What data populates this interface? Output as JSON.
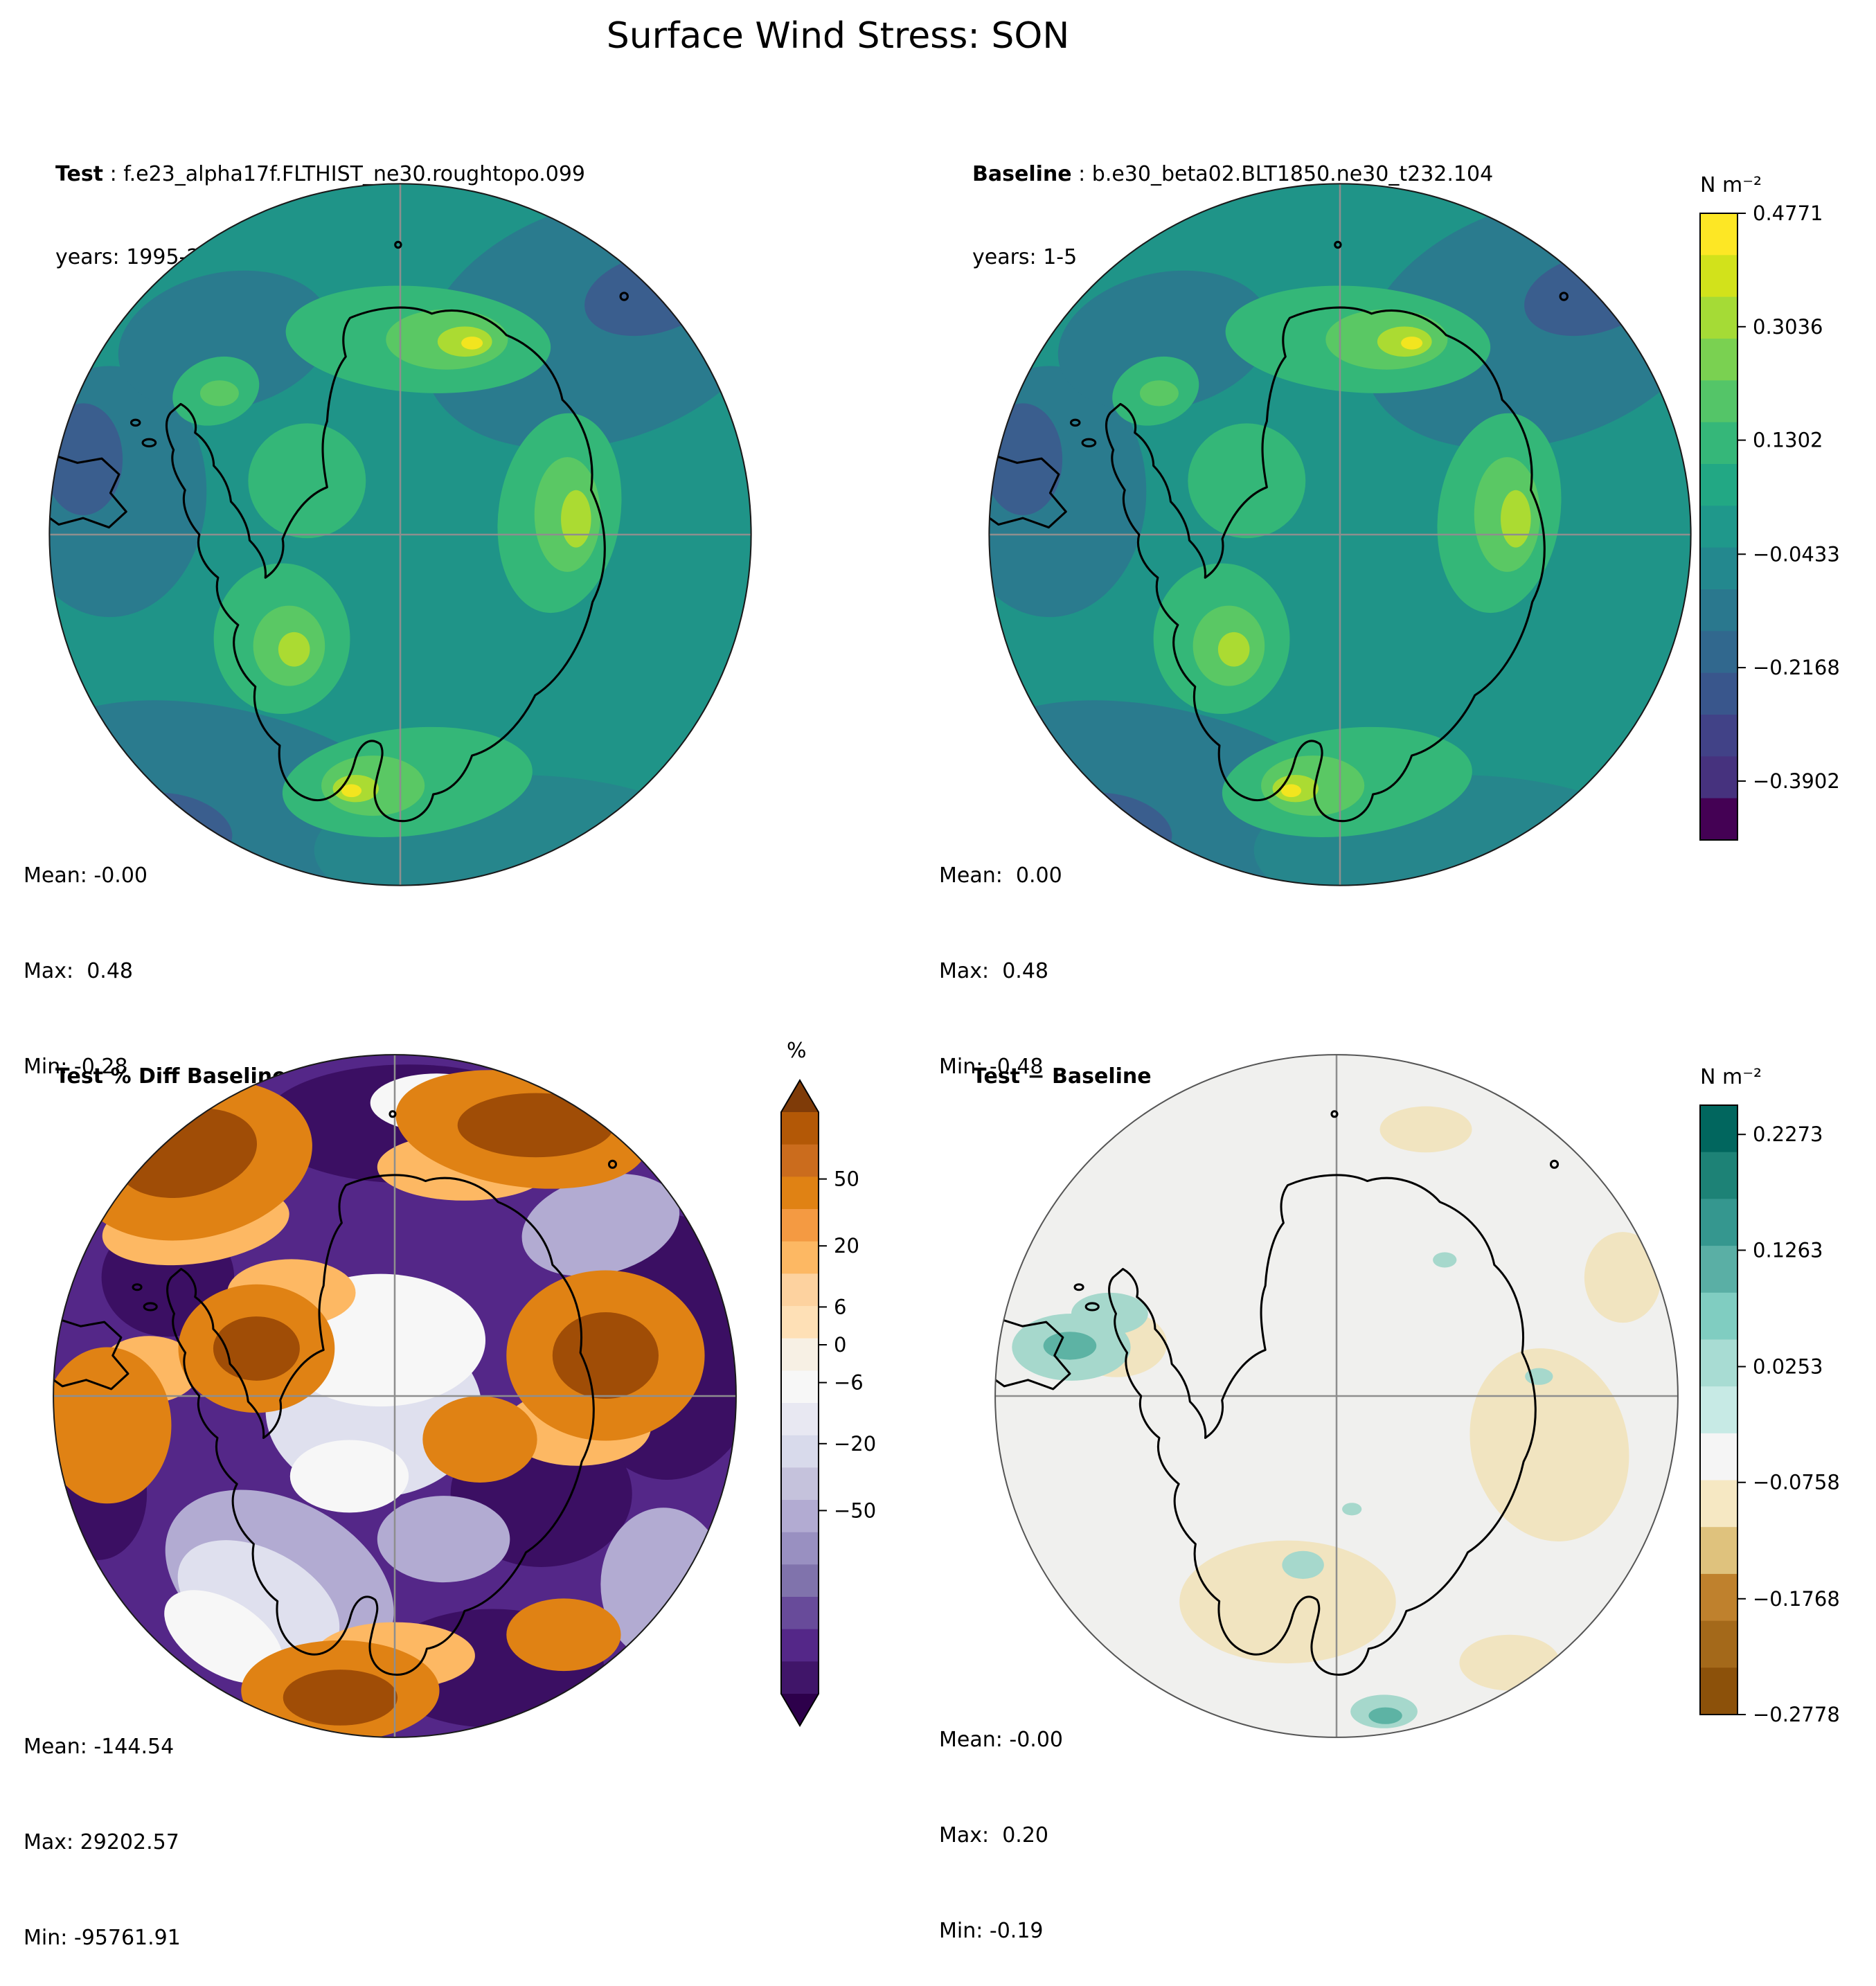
{
  "title": "Surface Wind Stress: SON",
  "panels": [
    {
      "label_bold": "Test",
      "label_rest": " : f.e23_alpha17f.FLTHIST_ne30.roughtopo.099",
      "years": "years: 1995-2006",
      "stats": [
        "Mean: -0.00",
        "Max:  0.48",
        "Min: -0.28"
      ]
    },
    {
      "label_bold": "Baseline",
      "label_rest": " : b.e30_beta02.BLT1850.ne30_t232.104",
      "years": "years: 1-5",
      "stats": [
        "Mean:  0.00",
        "Max:  0.48",
        "Min: -0.48"
      ]
    },
    {
      "label_bold": "Test % Diff Baseline",
      "label_rest": "",
      "years": "",
      "stats": [
        "Mean: -144.54",
        "Max: 29202.57",
        "Min: -95761.91"
      ]
    },
    {
      "label_bold": "Test − Baseline",
      "label_rest": "",
      "years": "",
      "stats": [
        "Mean: -0.00",
        "Max:  0.20",
        "Min: -0.19"
      ]
    }
  ],
  "colorbars": [
    {
      "units": "N m⁻²",
      "colormap": "viridis",
      "segments": [
        "#fde725",
        "#d2e21b",
        "#a5db36",
        "#7ad151",
        "#54c568",
        "#35b779",
        "#22a884",
        "#1f988b",
        "#23888e",
        "#2a788e",
        "#31688e",
        "#39568c",
        "#414287",
        "#46327e",
        "#440154"
      ],
      "ticks": [
        {
          "label": "0.4771",
          "pos": 0.0
        },
        {
          "label": "0.3036",
          "pos": 0.181
        },
        {
          "label": "0.1302",
          "pos": 0.362
        },
        {
          "label": "−0.0433",
          "pos": 0.544
        },
        {
          "label": "−0.2168",
          "pos": 0.725
        },
        {
          "label": "−0.3902",
          "pos": 0.906
        }
      ]
    },
    {
      "units": "%",
      "colormap": "PuOr_r",
      "extend": "both",
      "arrow_top": "#7f3b08",
      "arrow_bottom": "#2d004b",
      "segments": [
        "#b35806",
        "#cb6c1d",
        "#e08214",
        "#f49a42",
        "#fdb863",
        "#fdd29f",
        "#fee0b6",
        "#f7f0e4",
        "#f7f7f7",
        "#e8e8f2",
        "#d8daeb",
        "#c5c2dc",
        "#b2abd2",
        "#9990c1",
        "#8073ac",
        "#684b9a",
        "#542788",
        "#401569"
      ],
      "ticks": [
        {
          "label": "50",
          "pos": 0.115
        },
        {
          "label": "20",
          "pos": 0.23
        },
        {
          "label": "6",
          "pos": 0.335
        },
        {
          "label": "0",
          "pos": 0.4
        },
        {
          "label": "−6",
          "pos": 0.465
        },
        {
          "label": "−20",
          "pos": 0.57
        },
        {
          "label": "−50",
          "pos": 0.685
        }
      ]
    },
    {
      "units": "N m⁻²",
      "colormap": "BrBG",
      "segments": [
        "#01665e",
        "#1d8276",
        "#35978f",
        "#5aafa5",
        "#80cdc1",
        "#a8dcd3",
        "#c7eae5",
        "#f5f5f5",
        "#f6e8c3",
        "#dfc27d",
        "#bf812d",
        "#a4691a",
        "#8c510a"
      ],
      "ticks": [
        {
          "label": "0.2273",
          "pos": 0.048
        },
        {
          "label": "0.1263",
          "pos": 0.238
        },
        {
          "label": "0.0253",
          "pos": 0.429
        },
        {
          "label": "−0.0758",
          "pos": 0.619
        },
        {
          "label": "−0.1768",
          "pos": 0.81
        },
        {
          "label": "−0.2778",
          "pos": 1.0
        }
      ]
    }
  ],
  "chart_data": {
    "type": "heatmap",
    "subtype": "south-polar stereographic filled-contour maps of Antarctica (2x2 panel comparison)",
    "title": "Surface Wind Stress: SON",
    "grid": "polar crosshair gridlines through pole",
    "legend_position": "vertical colorbars right of each map row",
    "panels": [
      {
        "position": "top-left",
        "name": "Test",
        "case": "f.e23_alpha17f.FLTHIST_ne30.roughtopo.099",
        "years": "1995-2006",
        "units": "N m⁻²",
        "colormap": "viridis",
        "colorbar_ticks": [
          0.4771,
          0.3036,
          0.1302,
          -0.0433,
          -0.2168,
          -0.3902
        ],
        "mean": -0.0,
        "max": 0.48,
        "min": -0.28
      },
      {
        "position": "top-right",
        "name": "Baseline",
        "case": "b.e30_beta02.BLT1850.ne30_t232.104",
        "years": "1-5",
        "units": "N m⁻²",
        "colormap": "viridis",
        "colorbar_ticks": [
          0.4771,
          0.3036,
          0.1302,
          -0.0433,
          -0.2168,
          -0.3902
        ],
        "mean": 0.0,
        "max": 0.48,
        "min": -0.48
      },
      {
        "position": "bottom-left",
        "name": "Test % Diff Baseline",
        "units": "%",
        "colormap": "PuOr reversed, triangular extensions both ends",
        "colorbar_ticks": [
          50,
          20,
          6,
          0,
          -6,
          -20,
          -50
        ],
        "mean": -144.54,
        "max": 29202.57,
        "min": -95761.91
      },
      {
        "position": "bottom-right",
        "name": "Test − Baseline",
        "units": "N m⁻²",
        "colormap": "BrBG",
        "colorbar_ticks": [
          0.2273,
          0.1263,
          0.0253,
          -0.0758,
          -0.1768,
          -0.2778
        ],
        "mean": -0.0,
        "max": 0.2,
        "min": -0.19
      }
    ],
    "field_colors": {
      "viridis_background_teal": "#1f9488",
      "viridis_dark_blue_patch": "#3a5e8e",
      "viridis_hotspot_yellow": "#f2e51f",
      "pct_background_purple": "#542788",
      "pct_dark_purple": "#3b0f63",
      "pct_orange": "#e08214",
      "diff_background": "#f0f0ee",
      "diff_tan": "#f1e4c0",
      "diff_teal": "#5db3a4"
    }
  }
}
